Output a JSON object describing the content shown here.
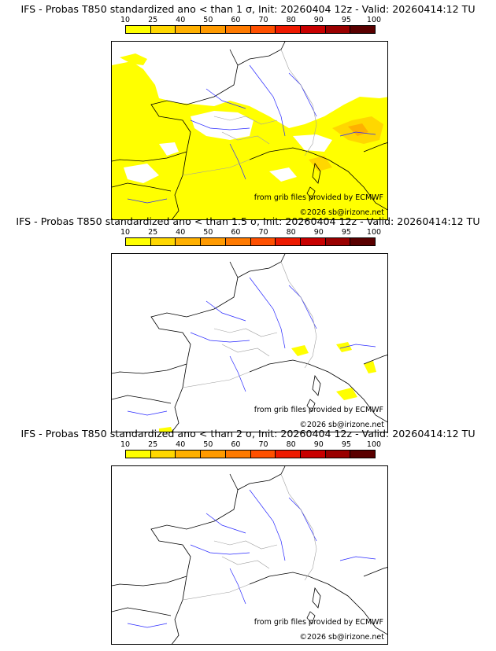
{
  "panels": [
    {
      "title": "IFS - Probas T850  standardized ano < than 1 σ, Init: 20260404 12z - Valid: 20260414:12 TU"
    },
    {
      "title": "IFS - Probas T850  standardized ano < than 1.5 σ, Init: 20260404 12z - Valid: 20260414:12 TU"
    },
    {
      "title": "IFS - Probas T850  standardized ano < than 2 σ, Init: 20260404 12z - Valid: 20260414:12 TU"
    }
  ],
  "colorbar": {
    "ticks": [
      "10",
      "25",
      "40",
      "50",
      "60",
      "70",
      "80",
      "90",
      "95",
      "100"
    ],
    "colors": [
      "#ffff00",
      "#ffd700",
      "#ffb000",
      "#ff9a00",
      "#ff7a00",
      "#ff5000",
      "#ee1a00",
      "#c80000",
      "#9a0000",
      "#5a0000"
    ]
  },
  "credit_source": "from grib files provided by ECMWF",
  "credit_copyright": "©2026 sb@irizone.net",
  "colors": {
    "coast": "#000000",
    "rivers": "#2a2aff",
    "borders": "#a0a0a0",
    "prob_low": "#ffff00",
    "prob_mid": "#ffd700",
    "prob_high": "#ffb000"
  }
}
